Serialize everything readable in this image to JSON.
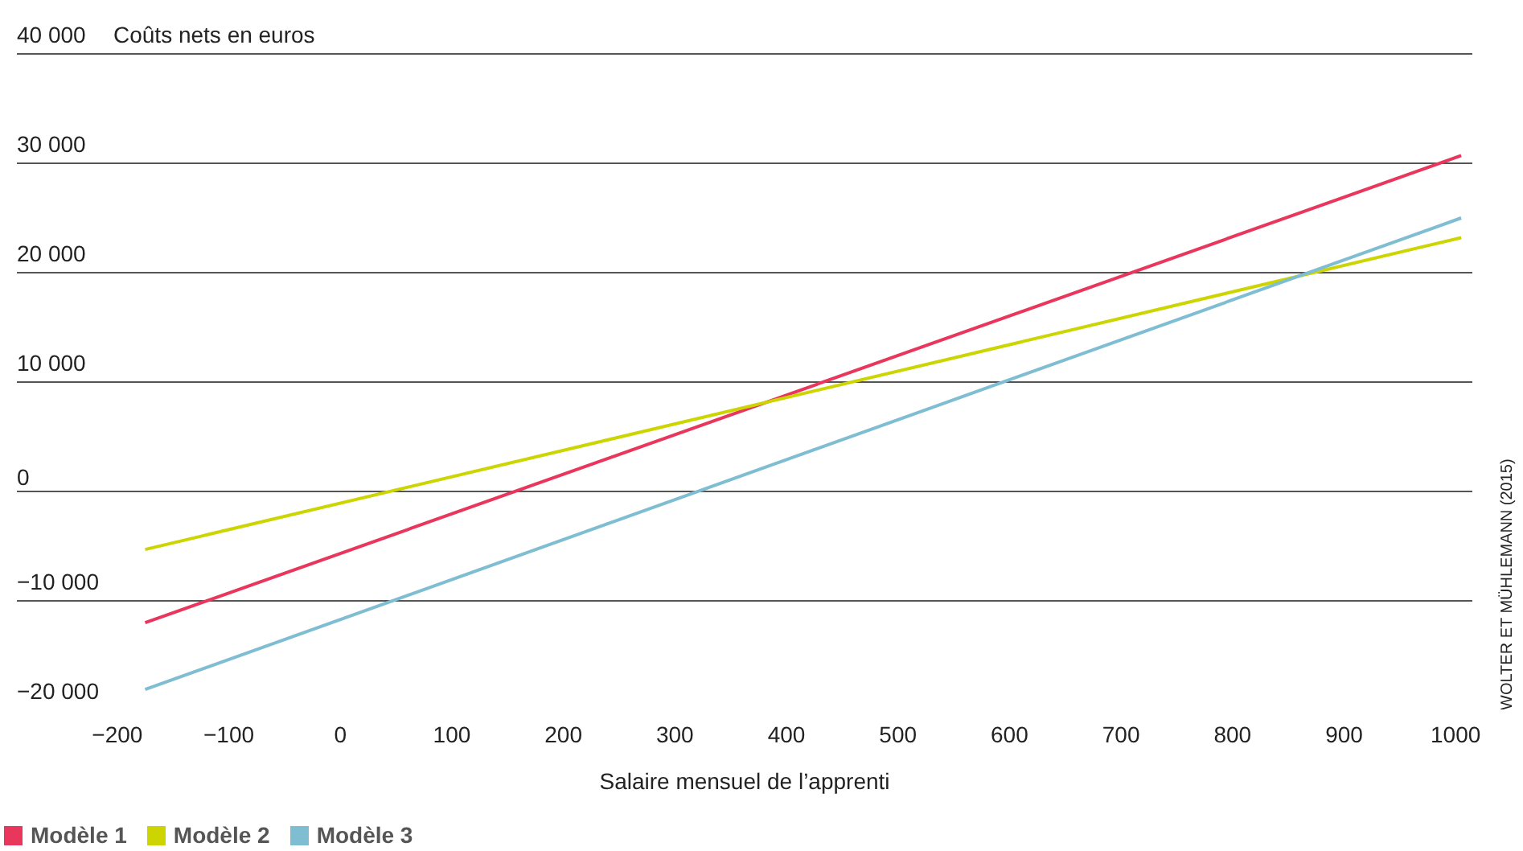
{
  "chart_data": {
    "type": "line",
    "ylabel": "Coûts nets en euros",
    "xlabel": "Salaire mensuel de l’apprenti",
    "x": [
      -175,
      1005
    ],
    "series": [
      {
        "name": "Modèle 1",
        "color": "#e8365d",
        "values": [
          -12000,
          30700
        ]
      },
      {
        "name": "Modèle 2",
        "color": "#cdd500",
        "values": [
          -5300,
          23200
        ]
      },
      {
        "name": "Modèle 3",
        "color": "#7fbdd2",
        "values": [
          -18100,
          25000
        ]
      }
    ],
    "xlim": [
      -290,
      1015
    ],
    "ylim": [
      -20000,
      40000
    ],
    "xticks": [
      {
        "value": -200,
        "label": "−200"
      },
      {
        "value": -100,
        "label": "−100"
      },
      0,
      100,
      200,
      300,
      400,
      500,
      600,
      700,
      800,
      900,
      1000
    ],
    "yticks": [
      {
        "value": -20000,
        "label": "−20 000"
      },
      {
        "value": -10000,
        "label": "−10 000"
      },
      0,
      {
        "value": 10000,
        "label": "10 000"
      },
      {
        "value": 20000,
        "label": "20 000"
      },
      {
        "value": 30000,
        "label": "30 000"
      },
      {
        "value": 40000,
        "label": "40 000"
      }
    ],
    "grid": "y",
    "legend": "bottom",
    "line_style": "solid",
    "marker": "none",
    "annotations": [
      "WOLTER ET MÜHLEMANN (2015)"
    ]
  }
}
